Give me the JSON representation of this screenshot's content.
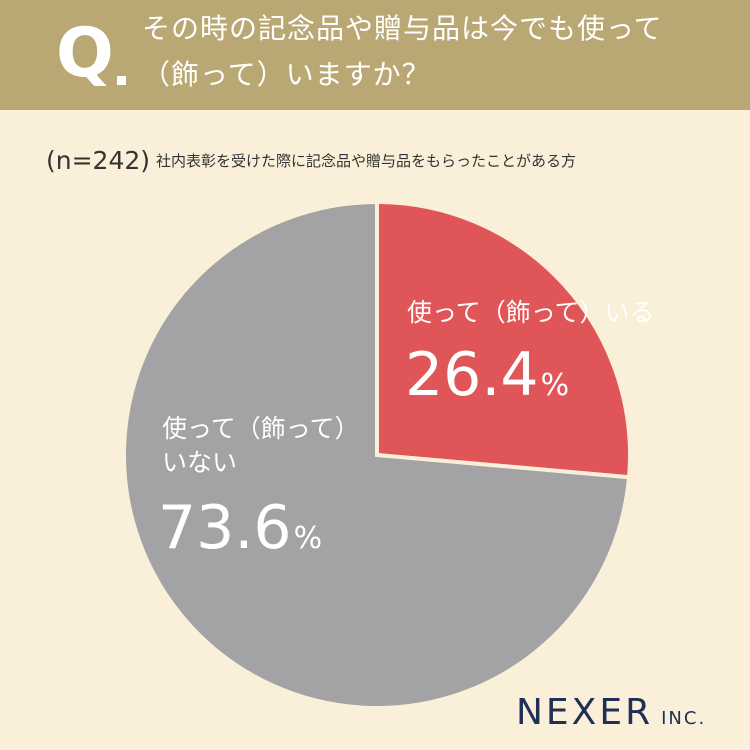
{
  "question": {
    "letter": "Q",
    "line1": "その時の記念品や贈与品は今でも使って",
    "line2": "（飾って）いますか？"
  },
  "sample": {
    "n": "(n=242)",
    "description": "社内表彰を受けた際に記念品や贈与品をもらったことがある方"
  },
  "chart_data": {
    "type": "pie",
    "categories": [
      "使って（飾って）いる",
      "使って（飾って）いない"
    ],
    "values": [
      26.4,
      73.6
    ],
    "unit": "%",
    "colors": [
      "#e05558",
      "#a3a2a4"
    ],
    "start": "12 o'clock, clockwise"
  },
  "labels": {
    "used": "使って（飾って）いる",
    "used_pct": "26.4",
    "notused_line1": "使って（飾って）",
    "notused_line2": "いない",
    "notused_pct": "73.6",
    "pct_sign": "%"
  },
  "colors": {
    "background": "#faf0d9",
    "header": "#b9a874",
    "logo": "#1f2f55"
  },
  "logo": {
    "main": "NEXER",
    "sub": "INC."
  }
}
